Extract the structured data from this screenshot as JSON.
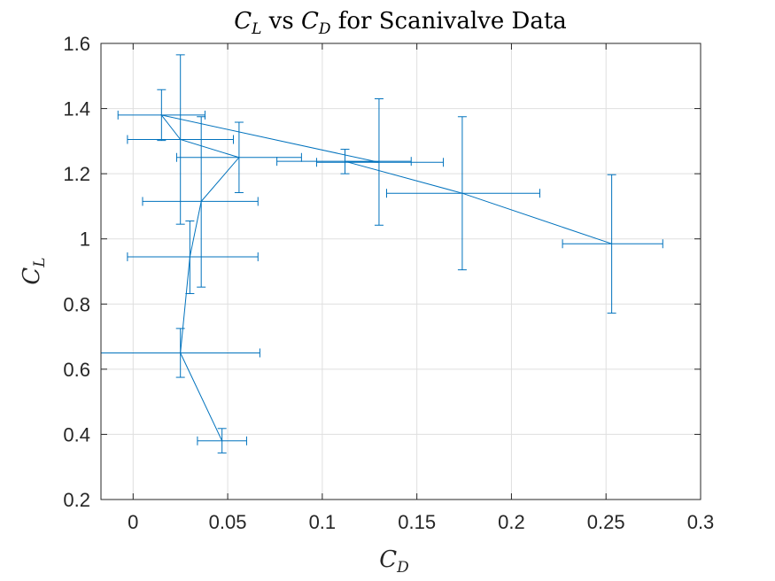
{
  "chart_data": {
    "type": "line",
    "title": {
      "main": "C",
      "main_sub": "L",
      "mid": " vs ",
      "second": "C",
      "second_sub": "D",
      "rest": " for Scanivalve Data"
    },
    "xlabel": {
      "main": "C",
      "sub": "D"
    },
    "ylabel": {
      "main": "C",
      "sub": "L"
    },
    "xlim": [
      -0.017,
      0.3
    ],
    "ylim": [
      0.2,
      1.6
    ],
    "xticks": [
      0,
      0.05,
      0.1,
      0.15,
      0.2,
      0.25,
      0.3
    ],
    "xtick_labels": [
      "0",
      "0.05",
      "0.1",
      "0.15",
      "0.2",
      "0.25",
      "0.3"
    ],
    "yticks": [
      0.2,
      0.4,
      0.6,
      0.8,
      1.0,
      1.2,
      1.4,
      1.6
    ],
    "ytick_labels": [
      "0.2",
      "0.4",
      "0.6",
      "0.8",
      "1",
      "1.2",
      "1.4",
      "1.6"
    ],
    "grid": true,
    "color": "#0072BD",
    "series": [
      {
        "points": [
          {
            "x": 0.047,
            "y": 0.38,
            "xlo": 0.034,
            "xhi": 0.06,
            "ylo": 0.343,
            "yhi": 0.418
          },
          {
            "x": 0.025,
            "y": 0.65,
            "xlo": -0.017,
            "xhi": 0.067,
            "ylo": 0.575,
            "yhi": 0.725
          },
          {
            "x": 0.03,
            "y": 0.945,
            "xlo": -0.003,
            "xhi": 0.066,
            "ylo": 0.832,
            "yhi": 1.055
          },
          {
            "x": 0.036,
            "y": 1.115,
            "xlo": 0.005,
            "xhi": 0.066,
            "ylo": 0.852,
            "yhi": 1.375
          },
          {
            "x": 0.056,
            "y": 1.25,
            "xlo": 0.023,
            "xhi": 0.089,
            "ylo": 1.142,
            "yhi": 1.358
          },
          {
            "x": 0.025,
            "y": 1.305,
            "xlo": -0.003,
            "xhi": 0.053,
            "ylo": 1.045,
            "yhi": 1.565
          },
          {
            "x": 0.015,
            "y": 1.38,
            "xlo": -0.008,
            "xhi": 0.038,
            "ylo": 1.302,
            "yhi": 1.458
          },
          {
            "x": 0.13,
            "y": 1.235,
            "xlo": 0.097,
            "xhi": 0.164,
            "ylo": 1.042,
            "yhi": 1.43
          },
          {
            "x": 0.112,
            "y": 1.238,
            "xlo": 0.076,
            "xhi": 0.147,
            "ylo": 1.2,
            "yhi": 1.275
          },
          {
            "x": 0.174,
            "y": 1.14,
            "xlo": 0.134,
            "xhi": 0.215,
            "ylo": 0.905,
            "yhi": 1.375
          },
          {
            "x": 0.253,
            "y": 0.985,
            "xlo": 0.227,
            "xhi": 0.28,
            "ylo": 0.772,
            "yhi": 1.197
          }
        ]
      }
    ]
  }
}
